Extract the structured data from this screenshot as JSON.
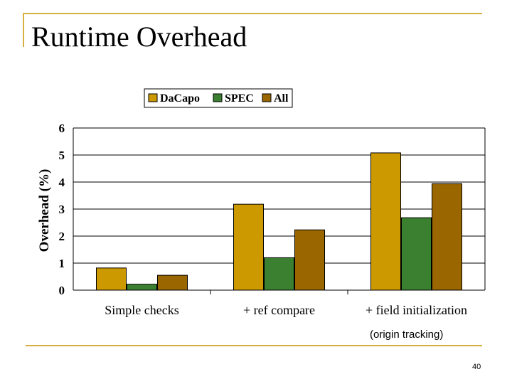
{
  "slide": {
    "title": "Runtime Overhead",
    "note": "(origin tracking)",
    "page_number": "40"
  },
  "colors": {
    "accent": "#d4b040",
    "dacapo": "#cc9900",
    "spec": "#3a8030",
    "all": "#996600"
  },
  "chart_data": {
    "type": "bar",
    "title": "",
    "xlabel": "",
    "ylabel": "Overhead (%)",
    "ylim": [
      0,
      6
    ],
    "yticks": [
      0,
      1,
      2,
      3,
      4,
      5,
      6
    ],
    "grid": "horizontal",
    "legend_position": "top",
    "categories": [
      "Simple checks",
      "+ ref compare",
      "+ field initialization"
    ],
    "series": [
      {
        "name": "DaCapo",
        "values": [
          0.82,
          3.18,
          5.08
        ]
      },
      {
        "name": "SPEC",
        "values": [
          0.22,
          1.2,
          2.68
        ]
      },
      {
        "name": "All",
        "values": [
          0.55,
          2.23,
          3.94
        ]
      }
    ]
  }
}
